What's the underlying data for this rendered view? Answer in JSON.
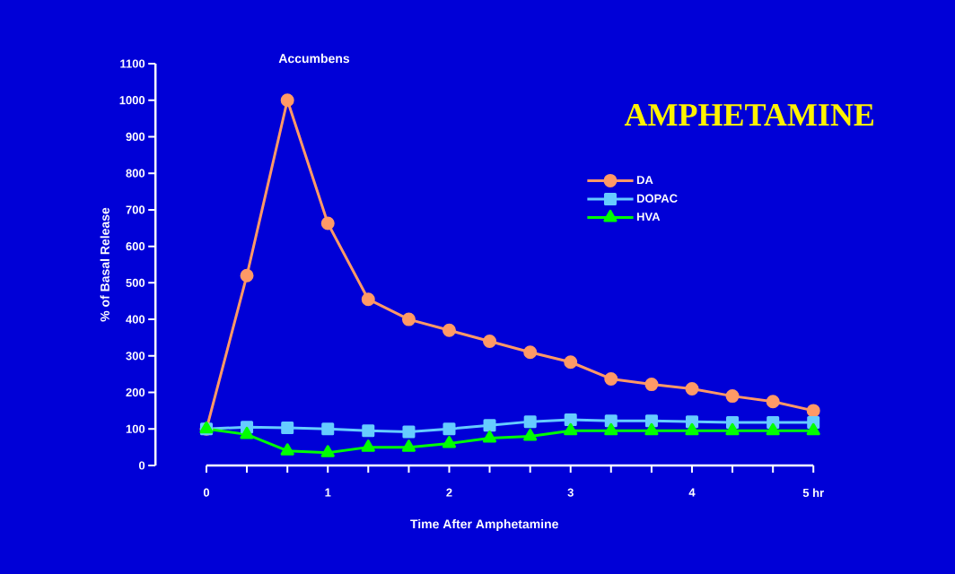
{
  "chart_data": {
    "type": "line",
    "title": "AMPHETAMINE",
    "subtitle": "Accumbens",
    "xlabel": "Time After Amphetamine",
    "ylabel": "% of Basal Release",
    "x": [
      0,
      0.333,
      0.667,
      1,
      1.333,
      1.667,
      2,
      2.333,
      2.667,
      3,
      3.333,
      3.667,
      4,
      4.333,
      4.667,
      5
    ],
    "series": [
      {
        "name": "DA",
        "color": "#ff9966",
        "marker": "circle",
        "values": [
          100,
          520,
          1000,
          663,
          455,
          400,
          370,
          340,
          310,
          283,
          237,
          222,
          210,
          190,
          175,
          150
        ]
      },
      {
        "name": "DOPAC",
        "color": "#66ccff",
        "marker": "square",
        "values": [
          100,
          105,
          103,
          100,
          95,
          92,
          100,
          110,
          120,
          125,
          122,
          122,
          120,
          118,
          118,
          118
        ]
      },
      {
        "name": "HVA",
        "color": "#00ff00",
        "marker": "triangle",
        "values": [
          100,
          85,
          40,
          35,
          50,
          50,
          60,
          75,
          80,
          95,
          95,
          95,
          95,
          95,
          95,
          95
        ]
      }
    ],
    "xlim": [
      -0.42,
      5
    ],
    "ylim": [
      0,
      1100
    ],
    "xticks": [
      0,
      {
        "value": 0.333,
        "label": null
      },
      {
        "value": 0.667,
        "label": null
      },
      1,
      {
        "value": 1.333,
        "label": null
      },
      {
        "value": 1.667,
        "label": null
      },
      2,
      {
        "value": 2.333,
        "label": null
      },
      {
        "value": 2.667,
        "label": null
      },
      3,
      {
        "value": 3.333,
        "label": null
      },
      {
        "value": 3.667,
        "label": null
      },
      4,
      {
        "value": 4.333,
        "label": null
      },
      {
        "value": 4.667,
        "label": null
      },
      {
        "value": 5,
        "label": "5 hr"
      }
    ],
    "yticks": [
      0,
      100,
      200,
      300,
      400,
      500,
      600,
      700,
      800,
      900,
      1000,
      1100
    ],
    "grid": false,
    "legend": "top right",
    "line_style": "solid"
  }
}
